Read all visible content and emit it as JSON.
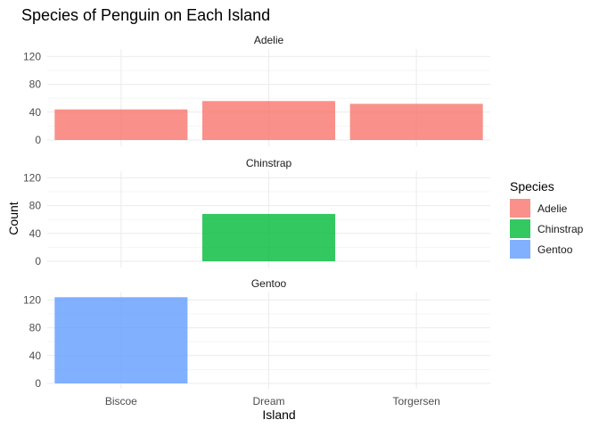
{
  "chart_data": {
    "type": "bar",
    "title": "Species of Penguin on Each Island",
    "xlabel": "Island",
    "ylabel": "Count",
    "categories": [
      "Biscoe",
      "Dream",
      "Torgersen"
    ],
    "facets": [
      {
        "name": "Adelie",
        "color": "#F8766D",
        "values": [
          44,
          56,
          52
        ]
      },
      {
        "name": "Chinstrap",
        "color": "#00BA38",
        "values": [
          0,
          68,
          0
        ]
      },
      {
        "name": "Gentoo",
        "color": "#619CFF",
        "values": [
          124,
          0,
          0
        ]
      }
    ],
    "ylim": [
      0,
      130
    ],
    "yticks": [
      0,
      40,
      80,
      120
    ],
    "bar_opacity": 0.8,
    "grid": true,
    "legend": {
      "title": "Species",
      "position": "right",
      "entries": [
        {
          "label": "Adelie",
          "color": "#F8766D"
        },
        {
          "label": "Chinstrap",
          "color": "#00BA38"
        },
        {
          "label": "Gentoo",
          "color": "#619CFF"
        }
      ]
    }
  }
}
